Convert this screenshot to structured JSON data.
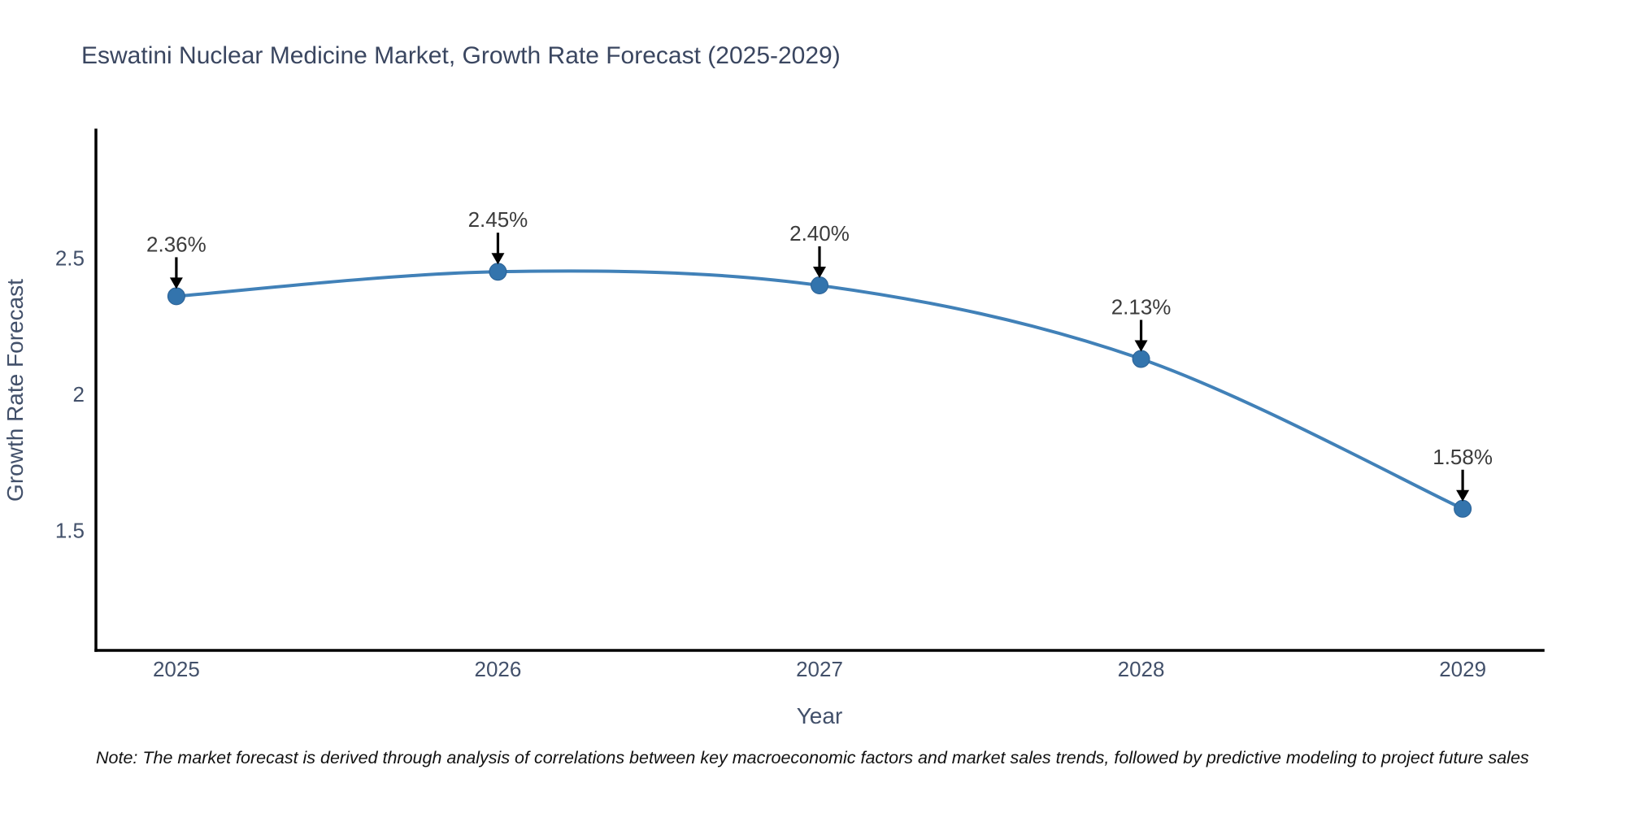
{
  "chart_data": {
    "type": "line",
    "title": "Eswatini Nuclear Medicine Market, Growth Rate Forecast (2025-2029)",
    "xlabel": "Year",
    "ylabel": "Growth Rate Forecast",
    "x": [
      2025,
      2026,
      2027,
      2028,
      2029
    ],
    "series": [
      {
        "name": "Growth Rate Forecast",
        "values": [
          2.36,
          2.45,
          2.4,
          2.13,
          1.58
        ],
        "point_labels": [
          "2.36%",
          "2.45%",
          "2.40%",
          "2.13%",
          "1.58%"
        ]
      }
    ],
    "x_tick_labels": [
      "2025",
      "2026",
      "2027",
      "2028",
      "2029"
    ],
    "y_ticks": [
      1.5,
      2,
      2.5
    ],
    "y_tick_labels": [
      "1.5",
      "2",
      "2.5"
    ],
    "x_domain": [
      2024.75,
      2029.25
    ],
    "y_domain": [
      1.06,
      2.97
    ],
    "grid": false,
    "legend_position": "none",
    "line_shape": "spline",
    "marker_style": "circle",
    "annotation_arrows": "down",
    "colors": {
      "line": "#4181b8",
      "marker": "#3374ad",
      "marker_edge": "#2a6094",
      "arrow": "#000000",
      "title_text": "#3a4660",
      "axis_text": "#42506a",
      "point_label_text": "#3c3c3c",
      "spine": "#000000",
      "background": "#ffffff"
    }
  },
  "note": {
    "text": "Note: The market forecast is derived through analysis of correlations between key macroeconomic factors and market sales trends, followed by predictive modeling to project future sales"
  }
}
